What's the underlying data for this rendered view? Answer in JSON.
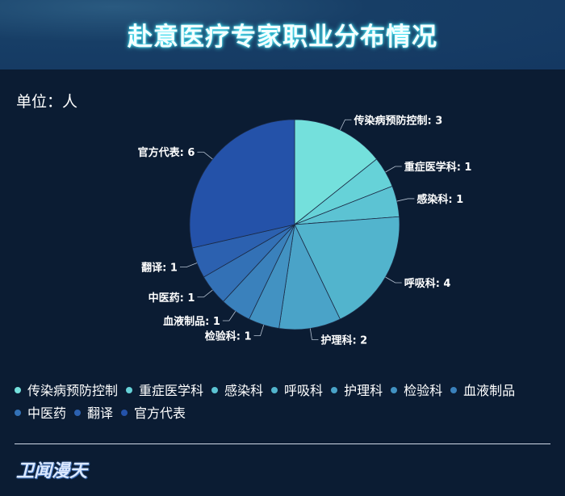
{
  "header": {
    "title": "赴意医疗专家职业分布情况"
  },
  "unit": "单位：人",
  "logo": "卫闻漫天",
  "chart_data": {
    "type": "pie",
    "title": "赴意医疗专家职业分布情况",
    "unit": "单位：人",
    "categories": [
      "传染病预防控制",
      "重症医学科",
      "感染科",
      "呼吸科",
      "护理科",
      "检验科",
      "血液制品",
      "中医药",
      "翻译",
      "官方代表"
    ],
    "values": [
      3,
      1,
      1,
      4,
      2,
      1,
      1,
      1,
      1,
      6
    ],
    "labels": [
      "传染病预防控制: 3",
      "重症医学科: 1",
      "感染科: 1",
      "呼吸科: 4",
      "护理科: 2",
      "检验科: 1",
      "血液制品: 1",
      "中医药: 1",
      "翻译: 1",
      "官方代表: 6"
    ],
    "colors": [
      "#74e0dc",
      "#66d2d8",
      "#5cc3d3",
      "#52b4cd",
      "#4aa3c8",
      "#4292c2",
      "#3a81bc",
      "#3371b6",
      "#2c61b0",
      "#2452a9"
    ],
    "legend_position": "bottom",
    "start_angle": "top, clockwise"
  }
}
